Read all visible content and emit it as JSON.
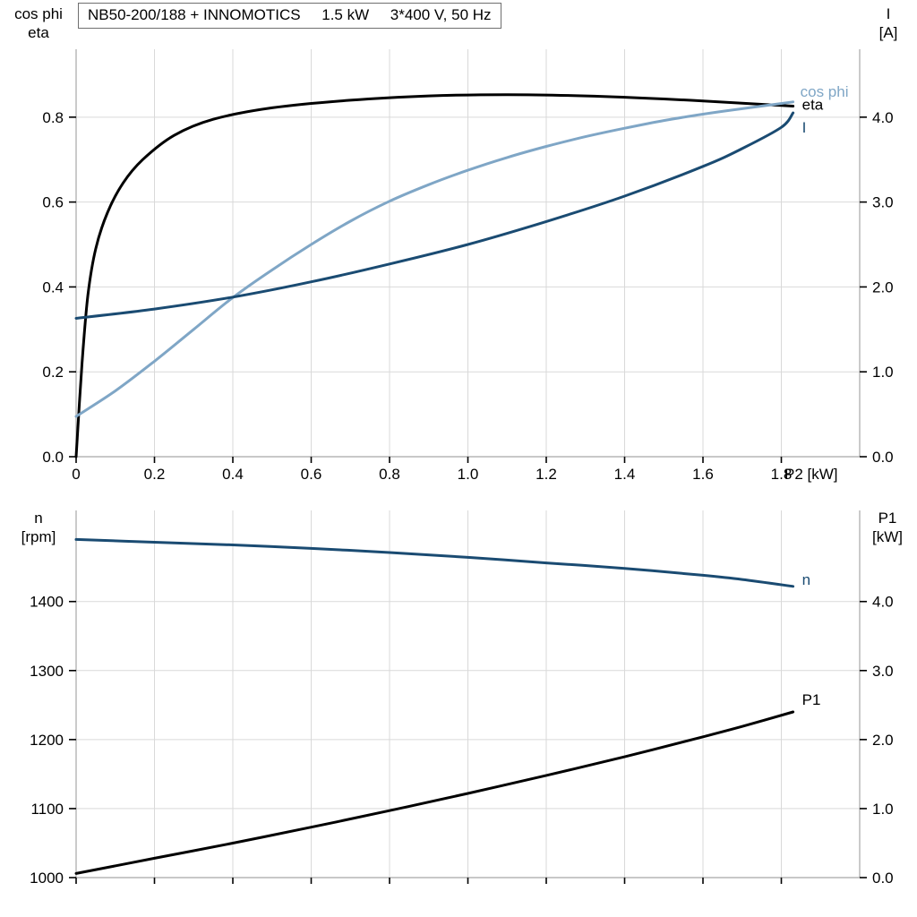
{
  "header": {
    "title": "NB50-200/188 + INNOMOTICS     1.5 kW     3*400 V, 50 Hz"
  },
  "axis_corner_labels": {
    "top_panel_left": [
      "cos phi",
      "eta"
    ],
    "top_panel_right": [
      "I",
      "[A]"
    ],
    "bottom_panel_left": [
      "n",
      "[rpm]"
    ],
    "bottom_panel_right": [
      "P1",
      "[kW]"
    ]
  },
  "colors": {
    "grid": "#d9d9d9",
    "frame": "#a8a8a8",
    "tick": "#000000",
    "text": "#000000",
    "eta_curve": "#000000",
    "cos_phi_curve": "#7fa6c6",
    "current_curve": "#1a4b72",
    "speed_curve": "#1a4b72",
    "p1_curve": "#000000"
  },
  "chart_data": [
    {
      "type": "line",
      "panel": "top",
      "title": "NB50-200/188 + INNOMOTICS  1.5 kW  3*400 V, 50 Hz",
      "x_axis": {
        "label": "P2 [kW]",
        "min": 0,
        "max": 2.0,
        "ticks": [
          0,
          0.2,
          0.4,
          0.6,
          0.8,
          1.0,
          1.2,
          1.4,
          1.6,
          1.8
        ],
        "tick_labels": [
          "0",
          "0.2",
          "0.4",
          "0.6",
          "0.8",
          "1.0",
          "1.2",
          "1.4",
          "1.6",
          "1.8"
        ],
        "show_tick_labels": true
      },
      "y_axis_left": {
        "label": "cos phi / eta",
        "min": 0,
        "max": 0.96,
        "ticks": [
          0,
          0.2,
          0.4,
          0.6,
          0.8
        ],
        "tick_labels": [
          "0.0",
          "0.2",
          "0.4",
          "0.6",
          "0.8"
        ]
      },
      "y_axis_right": {
        "label": "I [A]",
        "min": 0,
        "max": 4.8,
        "ticks": [
          0,
          1,
          2,
          3,
          4
        ],
        "tick_labels": [
          "0.0",
          "1.0",
          "2.0",
          "3.0",
          "4.0"
        ]
      },
      "grid": true,
      "series": [
        {
          "name": "eta",
          "label": "eta",
          "axis": "left",
          "color": "#000000",
          "label_dx": 10,
          "label_dy": 4,
          "x": [
            0,
            0.015,
            0.03,
            0.05,
            0.08,
            0.12,
            0.17,
            0.25,
            0.35,
            0.5,
            0.7,
            0.9,
            1.1,
            1.3,
            1.5,
            1.7,
            1.83
          ],
          "y": [
            0,
            0.22,
            0.38,
            0.49,
            0.575,
            0.645,
            0.7,
            0.757,
            0.795,
            0.822,
            0.84,
            0.85,
            0.853,
            0.85,
            0.843,
            0.833,
            0.826
          ]
        },
        {
          "name": "cos_phi",
          "label": "cos phi",
          "axis": "left",
          "color": "#7fa6c6",
          "label_dx": 8,
          "label_dy": -6,
          "x": [
            0,
            0.1,
            0.2,
            0.3,
            0.4,
            0.5,
            0.6,
            0.7,
            0.8,
            0.9,
            1.0,
            1.1,
            1.2,
            1.3,
            1.4,
            1.5,
            1.6,
            1.7,
            1.83
          ],
          "y": [
            0.095,
            0.155,
            0.225,
            0.3,
            0.375,
            0.44,
            0.5,
            0.555,
            0.602,
            0.641,
            0.675,
            0.705,
            0.731,
            0.754,
            0.774,
            0.792,
            0.807,
            0.82,
            0.836
          ]
        },
        {
          "name": "I",
          "label": "I",
          "axis": "right",
          "color": "#1a4b72",
          "label_dx": 10,
          "label_dy": 22,
          "x": [
            0,
            0.2,
            0.4,
            0.6,
            0.8,
            1.0,
            1.2,
            1.4,
            1.6,
            1.7,
            1.8,
            1.83
          ],
          "y": [
            1.63,
            1.74,
            1.88,
            2.06,
            2.27,
            2.5,
            2.77,
            3.07,
            3.42,
            3.63,
            3.88,
            4.05
          ]
        }
      ]
    },
    {
      "type": "line",
      "panel": "bottom",
      "title": "",
      "x_axis": {
        "label": "",
        "min": 0,
        "max": 2.0,
        "ticks": [
          0,
          0.2,
          0.4,
          0.6,
          0.8,
          1.0,
          1.2,
          1.4,
          1.6,
          1.8
        ],
        "tick_labels": [
          "0",
          "0.2",
          "0.4",
          "0.6",
          "0.8",
          "1.0",
          "1.2",
          "1.4",
          "1.6",
          "1.8"
        ],
        "show_tick_labels": false
      },
      "y_axis_left": {
        "label": "n [rpm]",
        "min": 1000,
        "max": 1532,
        "ticks": [
          1000,
          1100,
          1200,
          1300,
          1400
        ],
        "tick_labels": [
          "1000",
          "1100",
          "1200",
          "1300",
          "1400"
        ]
      },
      "y_axis_right": {
        "label": "P1 [kW]",
        "min": 0,
        "max": 5.32,
        "ticks": [
          0,
          1,
          2,
          3,
          4
        ],
        "tick_labels": [
          "0.0",
          "1.0",
          "2.0",
          "3.0",
          "4.0"
        ]
      },
      "grid": true,
      "series": [
        {
          "name": "n",
          "label": "n",
          "axis": "left",
          "color": "#1a4b72",
          "label_dx": 10,
          "label_dy": -2,
          "x": [
            0,
            0.2,
            0.4,
            0.6,
            0.8,
            1.0,
            1.2,
            1.4,
            1.6,
            1.7,
            1.83
          ],
          "y": [
            1490,
            1486,
            1482,
            1477,
            1471,
            1464,
            1456,
            1448,
            1438,
            1432,
            1422
          ]
        },
        {
          "name": "P1",
          "label": "P1",
          "axis": "right",
          "color": "#000000",
          "label_dx": 10,
          "label_dy": -8,
          "x": [
            0,
            0.2,
            0.4,
            0.6,
            0.8,
            1.0,
            1.2,
            1.4,
            1.6,
            1.7,
            1.83
          ],
          "y": [
            0.06,
            0.28,
            0.5,
            0.73,
            0.97,
            1.22,
            1.48,
            1.75,
            2.04,
            2.19,
            2.4
          ]
        }
      ]
    }
  ]
}
